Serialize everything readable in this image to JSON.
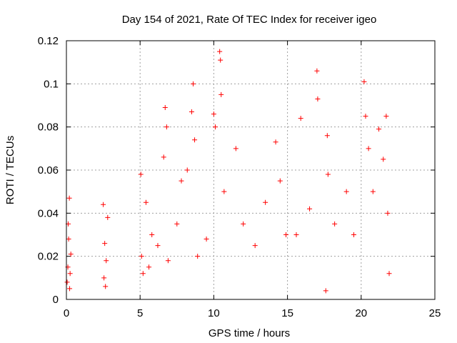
{
  "chart_data": {
    "type": "scatter",
    "title": "Day 154 of 2021, Rate Of TEC Index for receiver igeo",
    "xlabel": "GPS time / hours",
    "ylabel": "ROTI / TECUs",
    "xlim": [
      0,
      25
    ],
    "ylim": [
      0,
      0.12
    ],
    "x_ticks": [
      0,
      5,
      10,
      15,
      20,
      25
    ],
    "x_tick_labels": [
      "0",
      "5",
      "10",
      "15",
      "20",
      "25"
    ],
    "y_ticks": [
      0,
      0.02,
      0.04,
      0.06,
      0.08,
      0.1,
      0.12
    ],
    "y_tick_labels": [
      "0",
      "0.02",
      "0.04",
      "0.06",
      "0.08",
      "0.1",
      "0.12"
    ],
    "grid": true,
    "marker": "+",
    "color": "#ff0000",
    "series": [
      {
        "points": [
          [
            0.05,
            0.008
          ],
          [
            0.1,
            0.015
          ],
          [
            0.15,
            0.028
          ],
          [
            0.2,
            0.047
          ],
          [
            0.25,
            0.012
          ],
          [
            0.3,
            0.021
          ],
          [
            0.12,
            0.035
          ],
          [
            0.22,
            0.005
          ],
          [
            2.5,
            0.044
          ],
          [
            2.55,
            0.01
          ],
          [
            2.6,
            0.026
          ],
          [
            2.7,
            0.018
          ],
          [
            2.8,
            0.038
          ],
          [
            2.65,
            0.006
          ],
          [
            5.05,
            0.058
          ],
          [
            5.1,
            0.02
          ],
          [
            5.2,
            0.012
          ],
          [
            5.4,
            0.045
          ],
          [
            5.6,
            0.015
          ],
          [
            5.8,
            0.03
          ],
          [
            6.2,
            0.025
          ],
          [
            6.6,
            0.066
          ],
          [
            6.7,
            0.089
          ],
          [
            6.8,
            0.08
          ],
          [
            6.9,
            0.018
          ],
          [
            7.5,
            0.035
          ],
          [
            7.8,
            0.055
          ],
          [
            8.2,
            0.06
          ],
          [
            8.5,
            0.087
          ],
          [
            8.6,
            0.1
          ],
          [
            8.7,
            0.074
          ],
          [
            8.9,
            0.02
          ],
          [
            9.5,
            0.028
          ],
          [
            10.0,
            0.086
          ],
          [
            10.1,
            0.08
          ],
          [
            10.4,
            0.115
          ],
          [
            10.45,
            0.111
          ],
          [
            10.5,
            0.095
          ],
          [
            10.7,
            0.05
          ],
          [
            11.5,
            0.07
          ],
          [
            12.0,
            0.035
          ],
          [
            12.8,
            0.025
          ],
          [
            13.5,
            0.045
          ],
          [
            14.2,
            0.073
          ],
          [
            14.5,
            0.055
          ],
          [
            14.9,
            0.03
          ],
          [
            15.6,
            0.03
          ],
          [
            15.9,
            0.084
          ],
          [
            16.5,
            0.042
          ],
          [
            17.0,
            0.106
          ],
          [
            17.05,
            0.093
          ],
          [
            17.7,
            0.076
          ],
          [
            17.75,
            0.058
          ],
          [
            17.6,
            0.004
          ],
          [
            18.2,
            0.035
          ],
          [
            19.0,
            0.05
          ],
          [
            19.5,
            0.03
          ],
          [
            20.2,
            0.101
          ],
          [
            20.3,
            0.085
          ],
          [
            20.5,
            0.07
          ],
          [
            20.8,
            0.05
          ],
          [
            21.2,
            0.079
          ],
          [
            21.5,
            0.065
          ],
          [
            21.7,
            0.085
          ],
          [
            21.8,
            0.04
          ],
          [
            21.9,
            0.012
          ]
        ]
      }
    ]
  }
}
